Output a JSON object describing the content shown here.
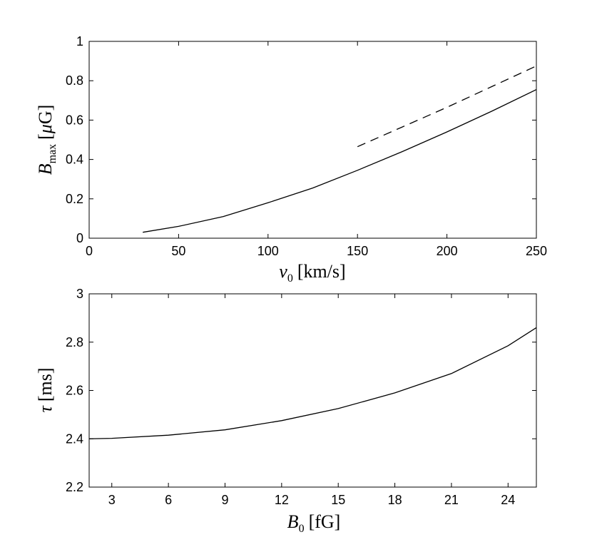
{
  "chart_data": [
    {
      "type": "line",
      "xlabel": {
        "var": "v",
        "sub": "0",
        "unit": "[km/s]"
      },
      "ylabel": {
        "var": "B",
        "sub": "max",
        "unit_open": "[",
        "mu": "μ",
        "unit_rest": "G]"
      },
      "xlim": [
        0,
        250
      ],
      "ylim": [
        0,
        1
      ],
      "xticks": [
        "0",
        "50",
        "100",
        "150",
        "200",
        "250"
      ],
      "yticks": [
        "0",
        "0.2",
        "0.4",
        "0.6",
        "0.8",
        "1"
      ],
      "grid": false,
      "series": [
        {
          "style": "solid",
          "x": [
            30,
            50,
            75,
            100,
            125,
            150,
            175,
            200,
            225,
            250
          ],
          "y": [
            0.03,
            0.06,
            0.11,
            0.18,
            0.255,
            0.345,
            0.44,
            0.54,
            0.645,
            0.755
          ]
        },
        {
          "style": "dashed",
          "x": [
            150,
            175,
            200,
            225,
            250
          ],
          "y": [
            0.465,
            0.565,
            0.665,
            0.77,
            0.875
          ]
        }
      ]
    },
    {
      "type": "line",
      "xlabel": {
        "var": "B",
        "sub": "0",
        "unit": "[fG]"
      },
      "ylabel": {
        "var": "τ",
        "unit": "[ms]"
      },
      "xlim": [
        1.8,
        25.5
      ],
      "ylim": [
        2.2,
        3
      ],
      "xticks": [
        "3",
        "6",
        "9",
        "12",
        "15",
        "18",
        "21",
        "24"
      ],
      "yticks": [
        "2.2",
        "2.4",
        "2.6",
        "2.8",
        "3"
      ],
      "grid": false,
      "series": [
        {
          "style": "solid",
          "x": [
            1.8,
            3,
            6,
            9,
            12,
            15,
            18,
            21,
            24,
            25.5
          ],
          "y": [
            2.4,
            2.402,
            2.415,
            2.437,
            2.475,
            2.525,
            2.59,
            2.67,
            2.785,
            2.86
          ]
        }
      ]
    }
  ]
}
